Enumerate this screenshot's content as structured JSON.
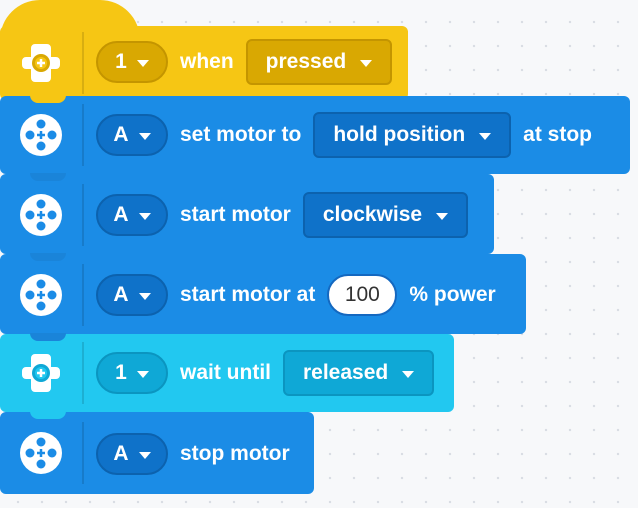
{
  "blocks": [
    {
      "kind": "hat",
      "color": "#f6c614",
      "icon": "force-sensor-icon",
      "port": "1",
      "text1": "when",
      "dropdown": "pressed"
    },
    {
      "kind": "motor",
      "color": "#1b8ce6",
      "icon": "motor-icon",
      "port": "A",
      "text1": "set motor to",
      "dropdown": "hold position",
      "text2": "at stop"
    },
    {
      "kind": "motor",
      "color": "#1b8ce6",
      "icon": "motor-icon",
      "port": "A",
      "text1": "start motor",
      "dropdown": "clockwise"
    },
    {
      "kind": "motor",
      "color": "#1b8ce6",
      "icon": "motor-icon",
      "port": "A",
      "text1": "start motor at",
      "value": "100",
      "text2": "% power"
    },
    {
      "kind": "sensor",
      "color": "#22c8f0",
      "icon": "force-sensor-icon",
      "port": "1",
      "text1": "wait until",
      "dropdown": "released"
    },
    {
      "kind": "motor",
      "color": "#1b8ce6",
      "icon": "motor-icon",
      "port": "A",
      "text1": "stop motor"
    }
  ]
}
